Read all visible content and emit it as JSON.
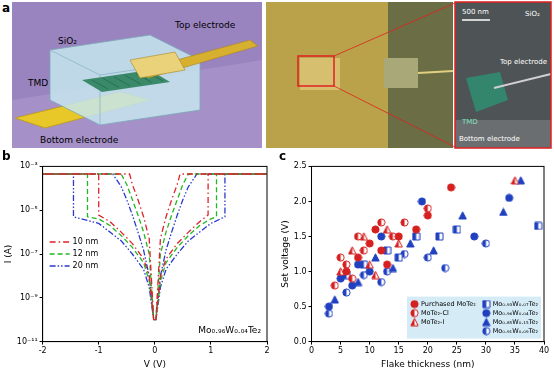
{
  "panel_a": {
    "label": "a",
    "schematic": {
      "top_electrode": "Top electrode",
      "oxide": "SiO₂",
      "tmd": "TMD",
      "bottom_electrode": "Bottom electrode"
    },
    "micrograph": {
      "scale_bar": "500 nm",
      "oxide": "SiO₂",
      "top_electrode": "Top electrode",
      "tmd": "TMD",
      "bottom_electrode": "Bottom electrode"
    }
  },
  "chart_data": [
    {
      "type": "line",
      "title": "b",
      "x_label": "V (V)",
      "y_label": "I (A)",
      "log": "y",
      "grid": false,
      "legend": "left",
      "annotation": "Mo₀.₉₆W₀.₀₄Te₂",
      "xlim": [
        -2,
        2
      ],
      "xticks": [
        -2,
        -1,
        0,
        1,
        2
      ],
      "ylim": [
        1e-11,
        0.001
      ],
      "yticks": [
        {
          "value": 1e-11,
          "label": "10⁻¹¹"
        },
        {
          "value": 1e-09,
          "label": "10⁻⁹"
        },
        {
          "value": 1e-07,
          "label": "10⁻⁷"
        },
        {
          "value": 1e-05,
          "label": "10⁻⁵"
        },
        {
          "value": 0.001,
          "label": "10⁻³"
        }
      ],
      "series": [
        {
          "name": "10 nm",
          "color": "#e0202a",
          "line_style": "dash_dot",
          "x": [
            0.02,
            0.1,
            0.2,
            0.4,
            0.6,
            0.8,
            0.95,
            0.95,
            2,
            0.45,
            0.4,
            0.3,
            0.2,
            0.1,
            0.02,
            -0.02,
            -0.1,
            -0.2,
            -0.4,
            -0.6,
            -0.8,
            -1.0,
            -1.0,
            -2,
            -0.45,
            -0.4,
            -0.3,
            -0.2,
            -0.1,
            -0.02
          ],
          "values": [
            1e-10,
            1e-08,
            6e-08,
            3e-07,
            1e-06,
            3e-06,
            6e-06,
            0.00045,
            0.00045,
            0.00045,
            0.00015,
            3e-05,
            5e-06,
            5e-07,
            1e-10,
            1e-10,
            1e-08,
            6e-08,
            3e-07,
            1e-06,
            3e-06,
            6e-06,
            0.00045,
            0.00045,
            0.00045,
            0.00015,
            3e-05,
            5e-06,
            5e-07,
            1e-10
          ]
        },
        {
          "name": "12 nm",
          "color": "#22b822",
          "line_style": "dashed",
          "x": [
            0.02,
            0.1,
            0.2,
            0.4,
            0.6,
            0.8,
            1.0,
            1.1,
            1.1,
            2,
            0.6,
            0.5,
            0.4,
            0.3,
            0.2,
            0.1,
            0.02,
            -0.02,
            -0.1,
            -0.2,
            -0.4,
            -0.6,
            -0.8,
            -1.0,
            -1.2,
            -1.2,
            -2,
            -0.6,
            -0.5,
            -0.4,
            -0.3,
            -0.2,
            -0.1,
            -0.02
          ],
          "values": [
            1e-10,
            6e-09,
            4e-08,
            2e-07,
            7e-07,
            2e-06,
            4e-06,
            5e-06,
            0.00045,
            0.00045,
            0.00045,
            0.00015,
            3e-05,
            6e-06,
            1e-06,
            1e-07,
            1e-10,
            1e-10,
            6e-09,
            4e-08,
            2e-07,
            7e-07,
            2e-06,
            4e-06,
            5e-06,
            0.00045,
            0.00045,
            0.00045,
            0.00015,
            3e-05,
            6e-06,
            1e-06,
            1e-07,
            1e-10
          ]
        },
        {
          "name": "20 nm",
          "color": "#2a3ad0",
          "line_style": "dash_dot_dot",
          "x": [
            0.02,
            0.1,
            0.2,
            0.4,
            0.6,
            0.8,
            1.0,
            1.25,
            1.25,
            2,
            0.75,
            0.6,
            0.5,
            0.4,
            0.3,
            0.2,
            0.1,
            0.02,
            -0.02,
            -0.1,
            -0.2,
            -0.4,
            -0.6,
            -0.8,
            -1.0,
            -1.45,
            -1.45,
            -2,
            -0.75,
            -0.6,
            -0.5,
            -0.4,
            -0.3,
            -0.2,
            -0.1,
            -0.02
          ],
          "values": [
            1e-10,
            3e-09,
            2e-08,
            1e-07,
            4e-07,
            1e-06,
            2.5e-06,
            5e-06,
            0.00045,
            0.00045,
            0.00045,
            0.00012,
            3e-05,
            6e-06,
            1e-06,
            1.5e-07,
            1e-08,
            1e-10,
            1e-10,
            3e-09,
            2e-08,
            1e-07,
            4e-07,
            1e-06,
            2.5e-06,
            5e-06,
            0.00045,
            0.00045,
            0.00045,
            0.00012,
            3e-05,
            6e-06,
            1e-06,
            1.5e-07,
            1e-08,
            1e-10
          ]
        }
      ]
    },
    {
      "type": "scatter",
      "title": "c",
      "x_label": "Flake thickness (nm)",
      "y_label": "Set voltage (V)",
      "grid": false,
      "legend": "lower right",
      "xlim": [
        0,
        40
      ],
      "xticks": [
        0,
        5,
        10,
        15,
        20,
        25,
        30,
        35,
        40
      ],
      "ylim": [
        0,
        2.5
      ],
      "yticks": [
        {
          "value": 0,
          "label": "0.0"
        },
        0.5,
        {
          "value": 1,
          "label": "1.0"
        },
        1.5,
        {
          "value": 2,
          "label": "2.0"
        },
        2.5
      ],
      "series": [
        {
          "name": "Purchased MoTe₂",
          "color": "#d62020",
          "marker": "circle",
          "x": [
            6,
            8,
            10,
            11,
            12,
            13,
            15,
            18,
            20,
            24
          ],
          "values": [
            1.0,
            1.2,
            1.4,
            1.6,
            1.3,
            1.1,
            1.5,
            1.6,
            1.8,
            2.2
          ]
        },
        {
          "name": "MoTe₂-Cl",
          "color": "#d62020",
          "marker": "half_circle",
          "x": [
            4,
            5,
            6,
            7,
            8,
            9,
            12,
            14,
            16,
            20
          ],
          "values": [
            0.8,
            1.2,
            1.1,
            0.9,
            1.5,
            1.3,
            1.7,
            1.5,
            1.7,
            1.9
          ]
        },
        {
          "name": "MoTe₂-I",
          "color": "#d62020",
          "marker": "half_triangle",
          "x": [
            5,
            7,
            9,
            10,
            11,
            13,
            15,
            35
          ],
          "values": [
            1.0,
            1.3,
            1.5,
            1.1,
            0.95,
            1.6,
            1.4,
            2.3
          ]
        },
        {
          "name": "Mo₀.₉₃W₀.₀₇Te₂",
          "color": "#2040c0",
          "marker": "half_square",
          "x": [
            6,
            9,
            13,
            15,
            18,
            22,
            25,
            39
          ],
          "values": [
            0.95,
            1.1,
            1.3,
            1.2,
            1.5,
            1.5,
            1.6,
            1.65
          ]
        },
        {
          "name": "Mo₀.₉₆W₀.₀₄Te₂",
          "color": "#2040c0",
          "marker": "circle",
          "x": [
            3,
            5,
            7,
            8,
            10,
            12,
            19,
            28,
            34
          ],
          "values": [
            0.5,
            0.9,
            0.8,
            1.1,
            1.0,
            1.5,
            2.0,
            1.5,
            2.05
          ]
        },
        {
          "name": "Mo₀.₈₅W₀.₁₅Te₂",
          "color": "#2040c0",
          "marker": "triangle",
          "x": [
            4,
            8,
            11,
            14,
            17,
            21,
            26,
            33,
            36
          ],
          "values": [
            0.6,
            0.85,
            1.2,
            1.05,
            1.4,
            1.3,
            1.8,
            1.85,
            2.3
          ]
        },
        {
          "name": "Mo₀.₉₁W₀.₀₉Te₂",
          "color": "#2040c0",
          "marker": "half_circle",
          "x": [
            3,
            6,
            9,
            12,
            13,
            16,
            20,
            23,
            30
          ],
          "values": [
            0.4,
            0.7,
            0.95,
            0.85,
            1.0,
            1.25,
            1.2,
            1.05,
            1.4
          ]
        }
      ]
    }
  ]
}
